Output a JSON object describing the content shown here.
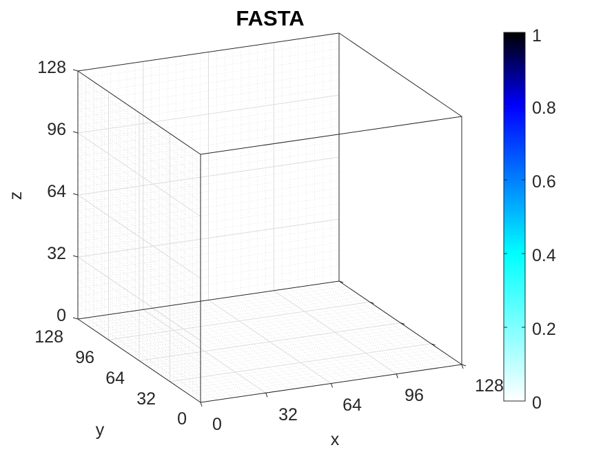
{
  "chart_data": {
    "type": "scatter",
    "title": "FASTA",
    "xlabel": "x",
    "ylabel": "y",
    "zlabel": "z",
    "xlim": [
      0,
      128
    ],
    "ylim": [
      0,
      128
    ],
    "zlim": [
      0,
      128
    ],
    "x_ticks": [
      "0",
      "32",
      "64",
      "96",
      "128"
    ],
    "y_ticks": [
      "0",
      "32",
      "64",
      "96",
      "128"
    ],
    "z_ticks": [
      "0",
      "32",
      "64",
      "96",
      "128"
    ],
    "grid": true,
    "colormap": [
      "#ffffff",
      "#00ffff",
      "#0000ff",
      "#000000"
    ],
    "colorbar": {
      "range": [
        0,
        1
      ],
      "ticks": [
        "0",
        "0.2",
        "0.4",
        "0.6",
        "0.8",
        "1"
      ],
      "placement": "right"
    }
  }
}
